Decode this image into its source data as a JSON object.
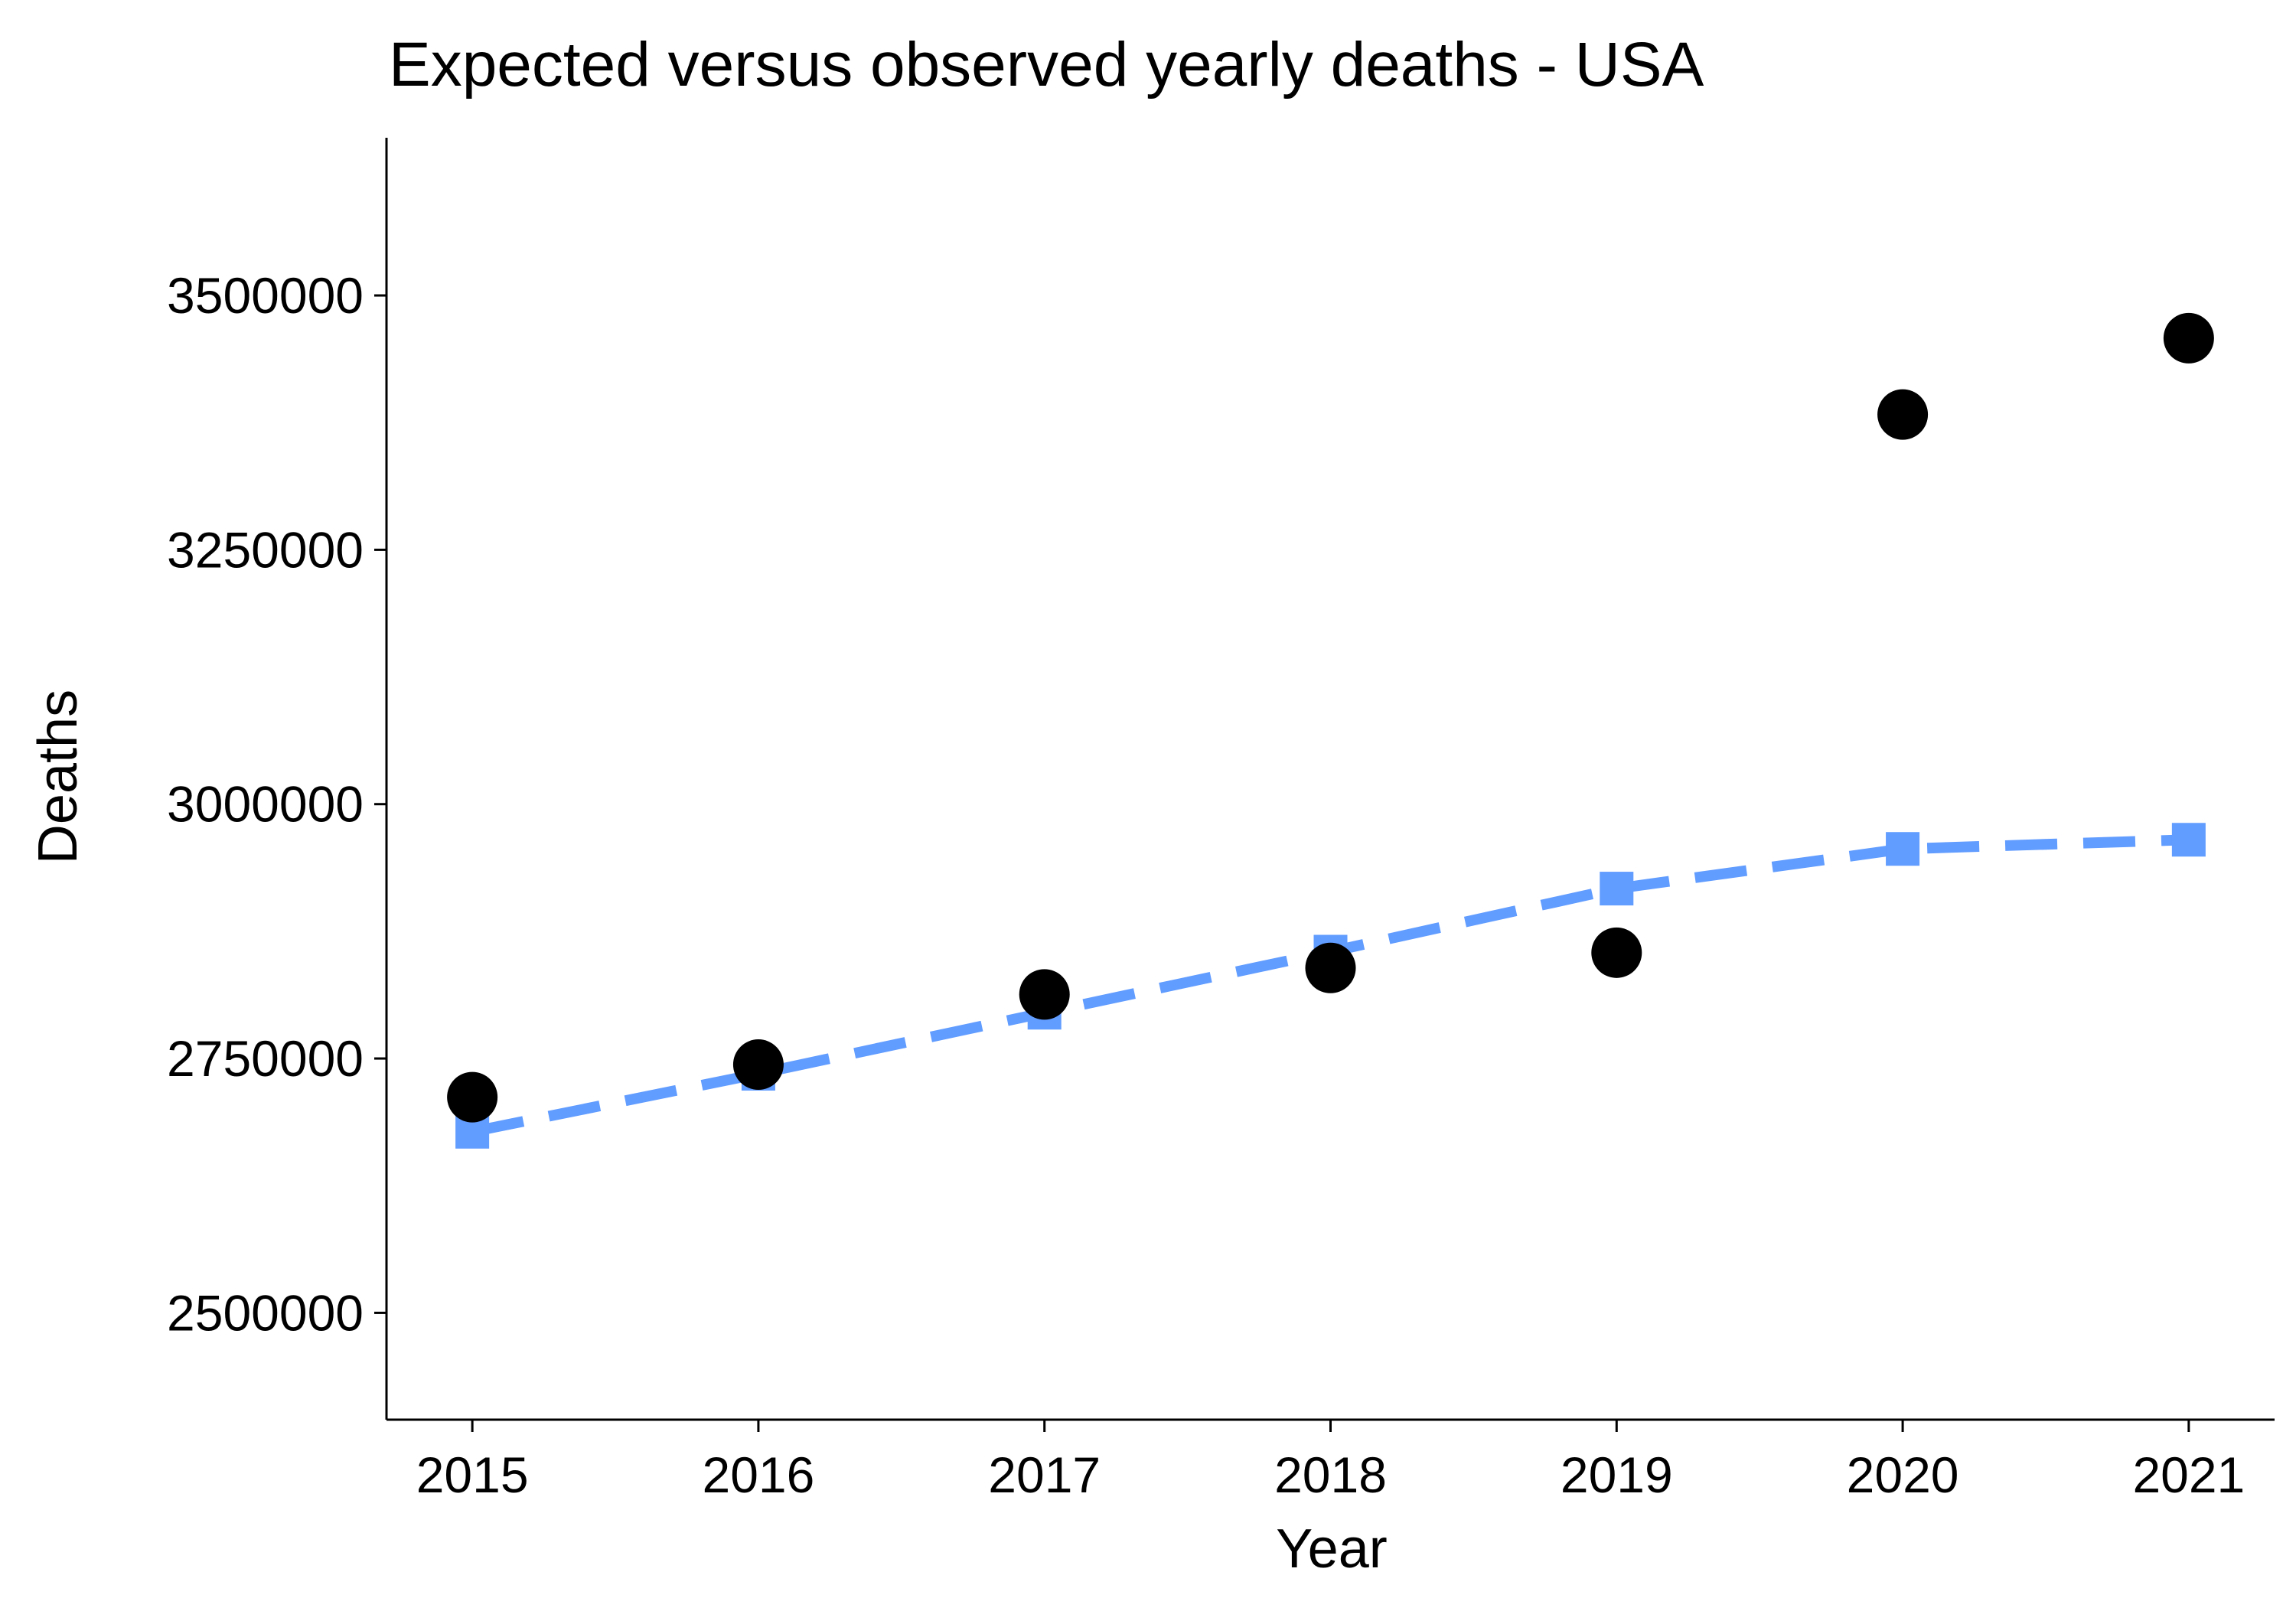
{
  "chart_data": {
    "type": "line",
    "title": "Expected versus observed yearly deaths - USA",
    "xlabel": "Year",
    "ylabel": "Deaths",
    "x": [
      2015,
      2016,
      2017,
      2018,
      2019,
      2020,
      2021
    ],
    "xlim": [
      2014.7,
      2021.3
    ],
    "ylim": [
      2395000,
      3655000
    ],
    "yticks": [
      2500000,
      2750000,
      3000000,
      3250000,
      3500000
    ],
    "ytick_labels": [
      "2500000",
      "2750000",
      "3000000",
      "3250000",
      "3500000"
    ],
    "xtick_labels": [
      "2015",
      "2016",
      "2017",
      "2018",
      "2019",
      "2020",
      "2021"
    ],
    "grid": false,
    "legend": "none",
    "series": [
      {
        "kind": "line-with-square-markers",
        "line_style": "dashed",
        "color": "#619CFF",
        "values": [
          2678000,
          2735000,
          2795000,
          2855000,
          2917000,
          2956000,
          2965000
        ]
      },
      {
        "kind": "points",
        "marker": "circle",
        "color": "#000000",
        "values": [
          2712000,
          2744000,
          2813000,
          2839000,
          2854000,
          3383000,
          3458000
        ]
      }
    ]
  }
}
